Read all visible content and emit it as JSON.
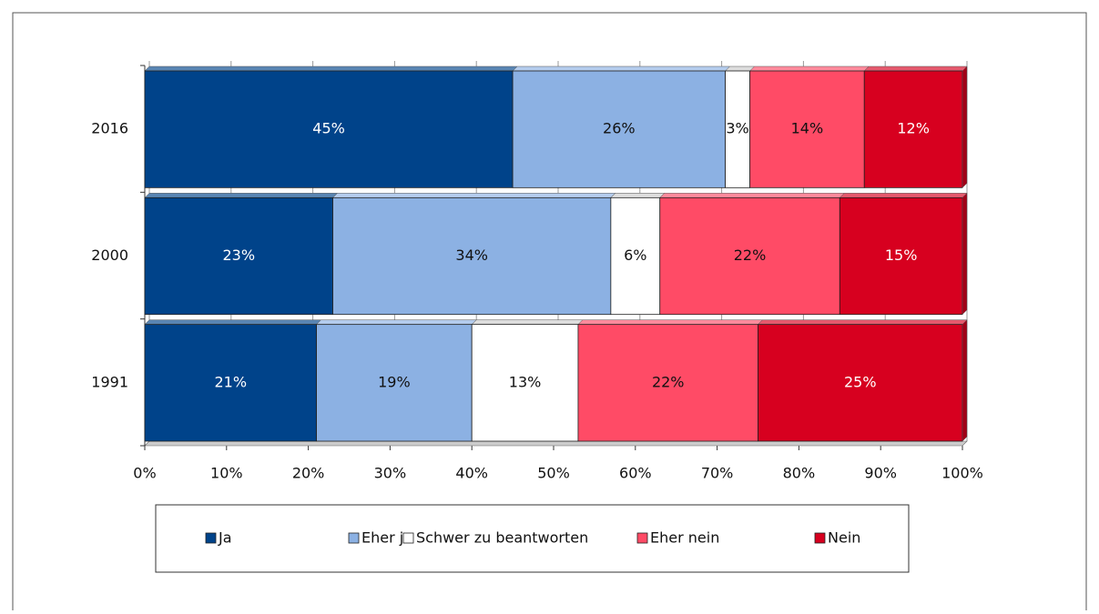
{
  "chart_data": {
    "type": "stacked-bar-horizontal",
    "categories": [
      "2016",
      "2000",
      "1991"
    ],
    "series": [
      {
        "name": "Ja",
        "color": "#00438a",
        "values": [
          45,
          23,
          21
        ],
        "value_labels": [
          "45%",
          "23%",
          "21%"
        ]
      },
      {
        "name": "Eher ja",
        "color": "#8cb1e3",
        "values": [
          26,
          34,
          19
        ],
        "value_labels": [
          "26%",
          "34%",
          "19%"
        ]
      },
      {
        "name": "Schwer zu beantworten",
        "color": "#ffffff",
        "values": [
          3,
          6,
          13
        ],
        "value_labels": [
          "3%",
          "6%",
          "13%"
        ]
      },
      {
        "name": "Eher nein",
        "color": "#ff4b66",
        "values": [
          14,
          22,
          22
        ],
        "value_labels": [
          "14%",
          "22%",
          "22%"
        ]
      },
      {
        "name": "Nein",
        "color": "#d7001f",
        "values": [
          12,
          15,
          25
        ],
        "value_labels": [
          "12%",
          "15%",
          "25%"
        ]
      }
    ],
    "xlim": [
      0,
      100
    ],
    "xticks": [
      {
        "value": 0,
        "label": "0%"
      },
      {
        "value": 10,
        "label": "10%"
      },
      {
        "value": 20,
        "label": "20%"
      },
      {
        "value": 30,
        "label": "30%"
      },
      {
        "value": 40,
        "label": "40%"
      },
      {
        "value": 50,
        "label": "50%"
      },
      {
        "value": 60,
        "label": "60%"
      },
      {
        "value": 70,
        "label": "70%"
      },
      {
        "value": 80,
        "label": "80%"
      },
      {
        "value": 90,
        "label": "90%"
      },
      {
        "value": 100,
        "label": "100%"
      }
    ],
    "grid": true,
    "legend": "bottom"
  }
}
